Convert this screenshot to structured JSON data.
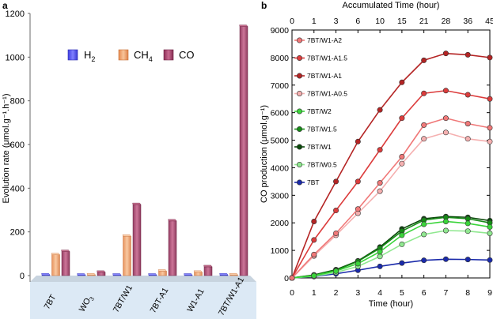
{
  "panel_a": {
    "letter": "a",
    "ylabel": "Evolution rate (μmol.g⁻¹.h⁻¹)",
    "legend": [
      {
        "label": "H",
        "sub": "2",
        "color": "#5b5bff"
      },
      {
        "label": "CH",
        "sub": "4",
        "color": "#f3a36b"
      },
      {
        "label": "CO",
        "sub": "",
        "color": "#a8406a"
      }
    ],
    "category_labels": [
      {
        "main": "7BT",
        "sub": ""
      },
      {
        "main": "WO",
        "sub": "3"
      },
      {
        "main": "7BT/W1",
        "sub": ""
      },
      {
        "main": "7BT-A1",
        "sub": ""
      },
      {
        "main": "W1-A1",
        "sub": ""
      },
      {
        "main": "7BT/W1-A1",
        "sub": ""
      }
    ]
  },
  "panel_b": {
    "letter": "b",
    "top_axis_title": "Accumulated Time (hour)",
    "top_ticks": [
      "0",
      "1",
      "3",
      "6",
      "10",
      "15",
      "21",
      "28",
      "36",
      "45"
    ],
    "legend_entries": [
      "7BT/W1-A2",
      "7BT/W1-A1.5",
      "7BT/W1-A1",
      "7BT/W1-A0.5",
      "7BT/W2",
      "7BT/W1.5",
      "7BT/W1",
      "7BT/W0.5",
      "7BT"
    ]
  },
  "chart_data": [
    {
      "type": "bar",
      "categories": [
        "7BT",
        "WO3",
        "7BT/W1",
        "7BT-A1",
        "W1-A1",
        "7BT/W1-A1"
      ],
      "xlabel": "",
      "ylabel": "Evolution rate (μmol.g⁻¹.h⁻¹)",
      "ylim": [
        0,
        1200
      ],
      "yticks": [
        0,
        200,
        400,
        600,
        800,
        1000,
        1200
      ],
      "series": [
        {
          "name": "H2",
          "color": "#5b5bff",
          "values": [
            3,
            2,
            2,
            2,
            2,
            3
          ]
        },
        {
          "name": "CH4",
          "color": "#f3a36b",
          "values": [
            95,
            3,
            180,
            20,
            15,
            3
          ]
        },
        {
          "name": "CO",
          "color": "#a8406a",
          "values": [
            110,
            15,
            325,
            250,
            40,
            1140
          ]
        }
      ]
    },
    {
      "type": "line",
      "xlabel": "Time (hour)",
      "ylabel": "CO production (μmol.g⁻¹)",
      "x": [
        0,
        1,
        2,
        3,
        4,
        5,
        6,
        7,
        8,
        9
      ],
      "xlim": [
        0,
        9
      ],
      "ylim": [
        0,
        9000
      ],
      "yticks": [
        0,
        1000,
        2000,
        3000,
        4000,
        5000,
        6000,
        7000,
        8000,
        9000
      ],
      "legend_position": "top-left",
      "series": [
        {
          "name": "7BT/W1-A2",
          "color": "#f07878",
          "values": [
            0,
            850,
            1620,
            2500,
            3450,
            4400,
            5550,
            5800,
            5600,
            5450
          ]
        },
        {
          "name": "7BT/W1-A1.5",
          "color": "#dc3c3c",
          "values": [
            0,
            1380,
            2450,
            3500,
            4650,
            5800,
            6700,
            6800,
            6650,
            6500
          ]
        },
        {
          "name": "7BT/W1-A1",
          "color": "#b42424",
          "values": [
            0,
            2050,
            3500,
            4950,
            6100,
            7100,
            7900,
            8150,
            8100,
            8000
          ]
        },
        {
          "name": "7BT/W1-A0.5",
          "color": "#f5b0b0",
          "values": [
            0,
            800,
            1550,
            2350,
            3150,
            4150,
            5050,
            5280,
            5050,
            4950
          ]
        },
        {
          "name": "7BT/W2",
          "color": "#3ad43a",
          "values": [
            0,
            80,
            250,
            520,
            950,
            1550,
            1950,
            2050,
            1980,
            1850
          ]
        },
        {
          "name": "7BT/W1.5",
          "color": "#168c16",
          "values": [
            0,
            100,
            280,
            600,
            1080,
            1700,
            2100,
            2200,
            2150,
            2000
          ]
        },
        {
          "name": "7BT/W1",
          "color": "#0a4a0a",
          "values": [
            0,
            110,
            300,
            620,
            1120,
            1780,
            2150,
            2230,
            2200,
            2080
          ]
        },
        {
          "name": "7BT/W0.5",
          "color": "#90e890",
          "values": [
            0,
            60,
            200,
            420,
            780,
            1220,
            1580,
            1720,
            1700,
            1620
          ]
        },
        {
          "name": "7BT",
          "color": "#1a2aaa",
          "values": [
            0,
            50,
            150,
            280,
            420,
            540,
            640,
            680,
            670,
            650
          ]
        }
      ]
    }
  ]
}
